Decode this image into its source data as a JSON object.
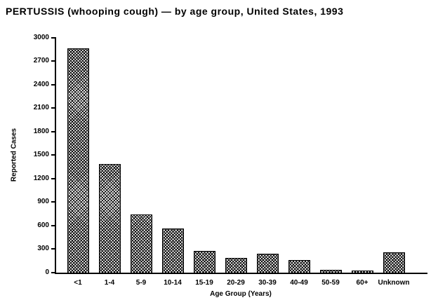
{
  "chart_data": {
    "type": "bar",
    "title": "PERTUSSIS (whooping cough) — by age group, United States, 1993",
    "xlabel": "Age Group (Years)",
    "ylabel": "Reported Cases",
    "categories": [
      "<1",
      "1-4",
      "5-9",
      "10-14",
      "15-19",
      "20-29",
      "30-39",
      "40-49",
      "50-59",
      "60+",
      "Unknown"
    ],
    "values": [
      2860,
      1390,
      740,
      560,
      280,
      185,
      240,
      165,
      40,
      30,
      260
    ],
    "ylim": [
      0,
      3000
    ],
    "yticks": [
      0,
      300,
      600,
      900,
      1200,
      1500,
      1800,
      2100,
      2400,
      2700,
      3000
    ],
    "grid": false,
    "legend_position": "none",
    "bar_fill": "black-white-crosshatch-dither",
    "bar_outline_color": "#000000",
    "background_color": "#ffffff",
    "text_color": "#000000"
  }
}
